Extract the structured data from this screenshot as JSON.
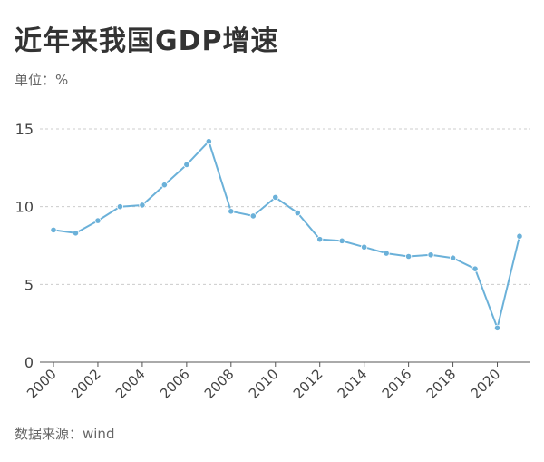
{
  "title": "近年来我国GDP增速",
  "unit_label": "单位：%",
  "source": "数据来源：wind",
  "colors": {
    "line": "#6bb1d9",
    "grid": "#cccccc",
    "axis": "#555555"
  },
  "chart_data": {
    "type": "line",
    "title": "近年来我国GDP增速",
    "xlabel": "",
    "ylabel": "",
    "ylim": [
      0,
      15
    ],
    "yticks": [
      0,
      5,
      10,
      15
    ],
    "xticks": [
      "2000",
      "2002",
      "2004",
      "2006",
      "2008",
      "2010",
      "2012",
      "2014",
      "2016",
      "2018",
      "2020"
    ],
    "grid": "horizontal dashed",
    "series": [
      {
        "x": [
          2000,
          2001,
          2002,
          2003,
          2004,
          2005,
          2006,
          2007,
          2008,
          2009,
          2010,
          2011,
          2012,
          2013,
          2014,
          2015,
          2016,
          2017,
          2018,
          2019,
          2020,
          2021
        ],
        "values": [
          8.5,
          8.3,
          9.1,
          10.0,
          10.1,
          11.4,
          12.7,
          14.2,
          9.7,
          9.4,
          10.6,
          9.6,
          7.9,
          7.8,
          7.4,
          7.0,
          6.8,
          6.9,
          6.7,
          6.0,
          2.2,
          8.1
        ]
      }
    ]
  }
}
